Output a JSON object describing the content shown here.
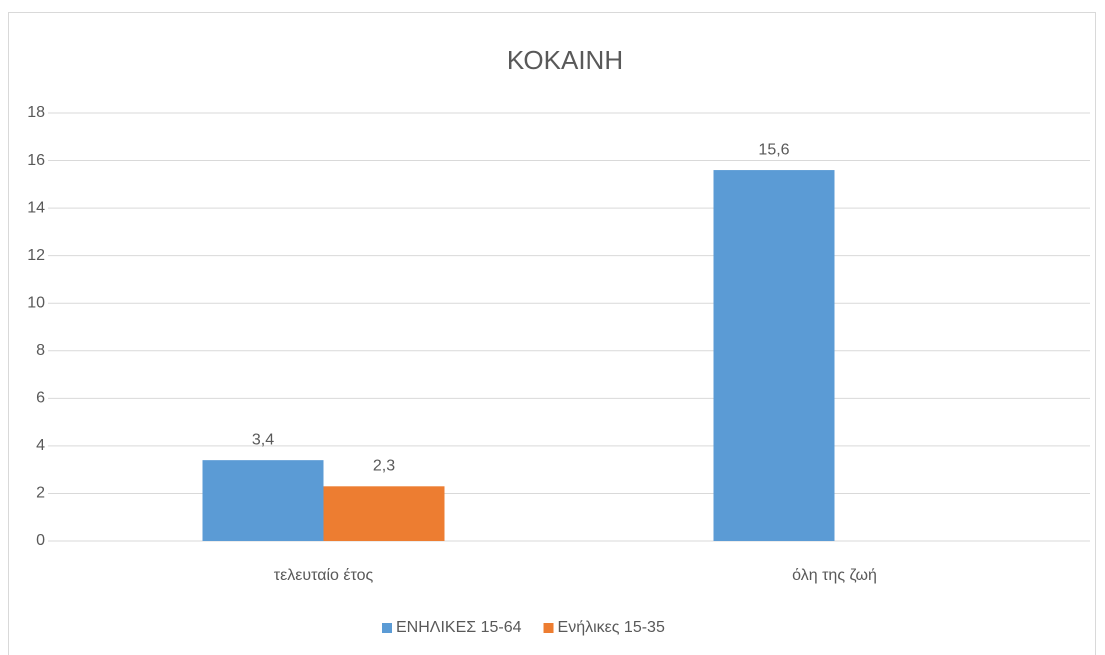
{
  "chart_data": {
    "type": "bar",
    "title": "ΚΟΚΑΙΝΗ",
    "categories": [
      "τελευταίο έτος",
      "όλη της ζωή"
    ],
    "series": [
      {
        "name": "ΕΝΗΛΙΚΕΣ 15-64",
        "color": "#5b9bd5",
        "values": [
          3.4,
          15.6
        ],
        "value_labels": [
          "3,4",
          "15,6"
        ]
      },
      {
        "name": "Ενήλικες 15-35",
        "color": "#ed7d31",
        "values": [
          2.3,
          null
        ],
        "value_labels": [
          "2,3",
          null
        ]
      }
    ],
    "ylim": [
      0,
      18
    ],
    "yticks": [
      0,
      2,
      4,
      6,
      8,
      10,
      12,
      14,
      16,
      18
    ],
    "grid": true,
    "legend": "bottom"
  }
}
